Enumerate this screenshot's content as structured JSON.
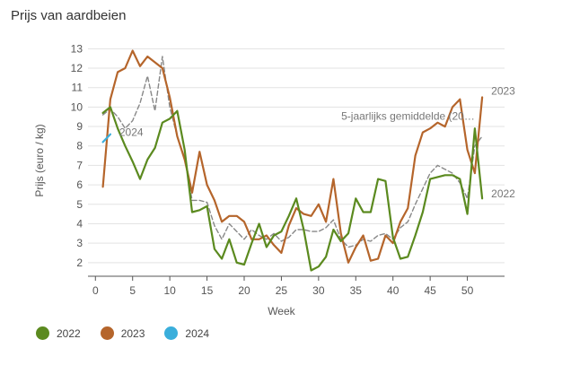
{
  "title": "Prijs van aardbeien",
  "chart_data": {
    "type": "line",
    "xlabel": "Week",
    "ylabel": "Prijs (euro / kg)",
    "xlim": [
      -1,
      55
    ],
    "ylim": [
      1.3,
      13.2
    ],
    "xticks": [
      0,
      5,
      10,
      15,
      20,
      25,
      30,
      35,
      40,
      45,
      50
    ],
    "yticks": [
      2,
      3,
      4,
      5,
      6,
      7,
      8,
      9,
      10,
      11,
      12,
      13
    ],
    "grid": "horizontal",
    "legend_position": "bottom-left",
    "series": [
      {
        "name": "2022",
        "color": "#5b8a1f",
        "x": [
          1,
          2,
          3,
          4,
          5,
          6,
          7,
          8,
          9,
          10,
          11,
          12,
          13,
          14,
          15,
          16,
          17,
          18,
          19,
          20,
          21,
          22,
          23,
          24,
          25,
          26,
          27,
          28,
          29,
          30,
          31,
          32,
          33,
          34,
          35,
          36,
          37,
          38,
          39,
          40,
          41,
          42,
          43,
          44,
          45,
          46,
          47,
          48,
          49,
          50,
          51,
          52
        ],
        "y": [
          9.7,
          10.0,
          8.9,
          8.0,
          7.2,
          6.3,
          7.3,
          7.9,
          9.2,
          9.4,
          9.8,
          7.8,
          4.6,
          4.7,
          4.9,
          2.7,
          2.2,
          3.2,
          2.0,
          1.9,
          3.0,
          4.0,
          2.8,
          3.4,
          3.6,
          4.4,
          5.3,
          3.7,
          1.6,
          1.8,
          2.3,
          3.7,
          3.1,
          3.5,
          5.3,
          4.6,
          4.6,
          6.3,
          6.2,
          3.3,
          2.2,
          2.3,
          3.4,
          4.6,
          6.3,
          6.4,
          6.5,
          6.5,
          6.3,
          4.5,
          8.9,
          5.3
        ]
      },
      {
        "name": "2023",
        "color": "#b5652b",
        "x": [
          1,
          2,
          3,
          4,
          5,
          6,
          7,
          8,
          9,
          10,
          11,
          12,
          13,
          14,
          15,
          16,
          17,
          18,
          19,
          20,
          21,
          22,
          23,
          24,
          25,
          26,
          27,
          28,
          29,
          30,
          31,
          32,
          33,
          34,
          35,
          36,
          37,
          38,
          39,
          40,
          41,
          42,
          43,
          44,
          45,
          46,
          47,
          48,
          49,
          50,
          51,
          52
        ],
        "y": [
          5.9,
          10.4,
          11.8,
          12.0,
          12.9,
          12.1,
          12.6,
          12.3,
          12.0,
          10.5,
          8.5,
          7.3,
          5.6,
          7.7,
          6.0,
          5.2,
          4.1,
          4.4,
          4.4,
          4.1,
          3.2,
          3.2,
          3.4,
          2.9,
          2.5,
          3.9,
          4.8,
          4.5,
          4.4,
          5.0,
          4.1,
          6.3,
          3.5,
          2.0,
          2.8,
          3.4,
          2.1,
          2.2,
          3.4,
          3.0,
          4.1,
          4.8,
          7.5,
          8.7,
          8.9,
          9.2,
          9.0,
          10.0,
          10.4,
          7.8,
          6.6,
          10.5
        ]
      },
      {
        "name": "2024",
        "color": "#3aaedb",
        "x": [
          1,
          2
        ],
        "y": [
          8.2,
          8.6
        ]
      },
      {
        "name": "5-jaarlijks gemiddelde (20…",
        "color": "#888888",
        "dashed": true,
        "x": [
          1,
          2,
          3,
          4,
          5,
          6,
          7,
          8,
          9,
          10,
          11,
          12,
          13,
          14,
          15,
          16,
          17,
          18,
          19,
          20,
          21,
          22,
          23,
          24,
          25,
          26,
          27,
          28,
          29,
          30,
          31,
          32,
          33,
          34,
          35,
          36,
          37,
          38,
          39,
          40,
          41,
          42,
          43,
          44,
          45,
          46,
          47,
          48,
          49,
          50,
          51,
          52
        ],
        "y": [
          9.6,
          9.9,
          9.5,
          8.9,
          9.3,
          10.2,
          11.6,
          9.8,
          12.6,
          10.0,
          8.5,
          7.4,
          5.2,
          5.2,
          5.1,
          3.9,
          3.2,
          4.0,
          3.6,
          3.2,
          3.7,
          3.4,
          3.2,
          3.5,
          3.1,
          3.3,
          3.7,
          3.7,
          3.6,
          3.6,
          3.8,
          4.2,
          3.2,
          2.8,
          2.9,
          3.2,
          3.1,
          3.4,
          3.5,
          3.2,
          3.8,
          4.1,
          5.0,
          5.8,
          6.6,
          7.0,
          6.8,
          6.6,
          6.1,
          5.3,
          8.0,
          8.5
        ]
      }
    ],
    "annotations": {
      "label_2024": "2024",
      "label_avg": "5-jaarlijks gemiddelde (20…",
      "label_2023": "2023",
      "label_2022": "2022"
    },
    "legend": [
      {
        "label": "2022",
        "color": "#5b8a1f"
      },
      {
        "label": "2023",
        "color": "#b5652b"
      },
      {
        "label": "2024",
        "color": "#3aaedb"
      }
    ]
  }
}
